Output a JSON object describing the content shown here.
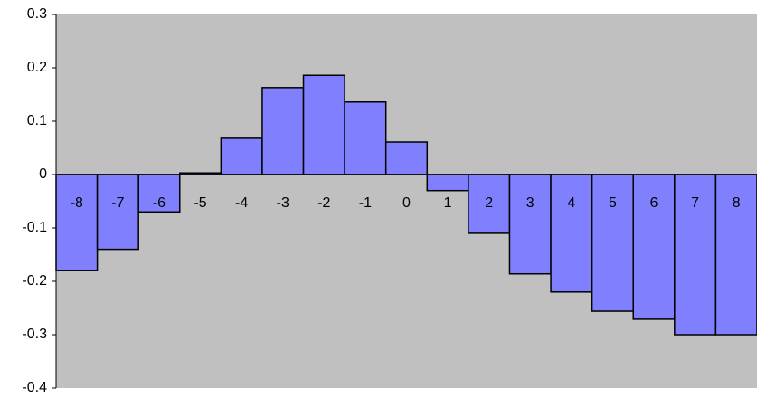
{
  "chart_data": {
    "type": "bar",
    "categories": [
      "-8",
      "-7",
      "-6",
      "-5",
      "-4",
      "-3",
      "-2",
      "-1",
      "0",
      "1",
      "2",
      "3",
      "4",
      "5",
      "6",
      "7",
      "8"
    ],
    "values": [
      -0.18,
      -0.14,
      -0.07,
      0.003,
      0.068,
      0.163,
      0.186,
      0.136,
      0.061,
      -0.03,
      -0.11,
      -0.186,
      -0.22,
      -0.256,
      -0.271,
      -0.3,
      -0.3
    ],
    "color": "#8080ff",
    "plot_background": "#c0c0c0",
    "ylim": [
      -0.4,
      0.3
    ],
    "yticks": [
      -0.4,
      -0.3,
      -0.2,
      -0.1,
      0,
      0.1,
      0.2,
      0.3
    ],
    "grid": false
  }
}
